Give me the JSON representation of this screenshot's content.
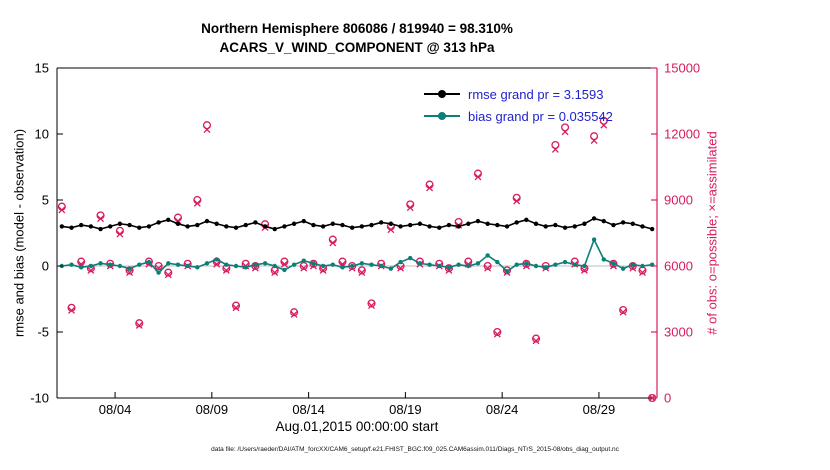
{
  "title": {
    "line1": "Northern Hemisphere 806086 / 819940 = 98.310%",
    "line2": "ACARS_V_WIND_COMPONENT @ 313 hPa"
  },
  "axes": {
    "left_label": "rmse and bias (model - observation)",
    "right_label": "# of obs: o=possible; ×=assimilated",
    "x_label": "Aug.01,2015 00:00:00 start",
    "left_ticks": [
      15,
      10,
      5,
      0,
      -5,
      -10
    ],
    "left_range": [
      -10,
      15
    ],
    "right_ticks": [
      0,
      3000,
      6000,
      9000,
      12000,
      15000
    ],
    "right_range": [
      0,
      15000
    ],
    "x_ticks": [
      {
        "day": 3,
        "label": "08/04"
      },
      {
        "day": 8,
        "label": "08/09"
      },
      {
        "day": 13,
        "label": "08/14"
      },
      {
        "day": 18,
        "label": "08/19"
      },
      {
        "day": 23,
        "label": "08/24"
      },
      {
        "day": 28,
        "label": "08/29"
      }
    ]
  },
  "legend": [
    {
      "label": "rmse grand pr = 3.1593",
      "color": "#000000"
    },
    {
      "label": "bias grand pr = 0.035542",
      "color": "#0e7f78"
    }
  ],
  "colors": {
    "rmse": "#000000",
    "bias": "#0e7f78",
    "obs": "#d81b60",
    "legend_text": "#2222cc",
    "grid": "#bdbdbd",
    "axis": "#000000"
  },
  "caption": "data file: /Users/raeder/DAI/ATM_forcXX/CAM6_setup/f.e21.FHIST_BGC.f09_025.CAM6assim.011/Diags_NTrS_2015-08/obs_diag_output.nc",
  "chart_data": {
    "type": "line",
    "title": "Northern Hemisphere 806086 / 819940 = 98.310%",
    "subtitle": "ACARS_V_WIND_COMPONENT @ 313 hPa",
    "xlabel": "Aug.01,2015 00:00:00 start",
    "ylabel_left": "rmse and bias (model - observation)",
    "ylabel_right": "# of obs: o=possible; ×=assimilated",
    "x_range_days": [
      0,
      31
    ],
    "ylim_left": [
      -10,
      15
    ],
    "ylim_right": [
      0,
      15000
    ],
    "grid": "y-zero-line-only",
    "legend_position": "upper-right-inside",
    "x_days": [
      0.25,
      0.75,
      1.25,
      1.75,
      2.25,
      2.75,
      3.25,
      3.75,
      4.25,
      4.75,
      5.25,
      5.75,
      6.25,
      6.75,
      7.25,
      7.75,
      8.25,
      8.75,
      9.25,
      9.75,
      10.25,
      10.75,
      11.25,
      11.75,
      12.25,
      12.75,
      13.25,
      13.75,
      14.25,
      14.75,
      15.25,
      15.75,
      16.25,
      16.75,
      17.25,
      17.75,
      18.25,
      18.75,
      19.25,
      19.75,
      20.25,
      20.75,
      21.25,
      21.75,
      22.25,
      22.75,
      23.25,
      23.75,
      24.25,
      24.75,
      25.25,
      25.75,
      26.25,
      26.75,
      27.25,
      27.75,
      28.25,
      28.75,
      29.25,
      29.75,
      30.25,
      30.75
    ],
    "series": [
      {
        "name": "rmse",
        "axis": "left",
        "marker": "dot",
        "grand_mean": 3.1593,
        "values": [
          3.0,
          2.9,
          3.1,
          3.0,
          2.8,
          3.0,
          3.2,
          3.1,
          2.9,
          3.0,
          3.3,
          3.5,
          3.2,
          3.0,
          3.1,
          3.4,
          3.2,
          3.0,
          2.9,
          3.1,
          3.3,
          3.0,
          2.8,
          3.0,
          3.2,
          3.4,
          3.1,
          3.0,
          3.2,
          3.1,
          2.9,
          3.0,
          3.1,
          3.3,
          3.2,
          3.0,
          3.1,
          3.2,
          3.0,
          2.9,
          3.1,
          3.0,
          3.2,
          3.4,
          3.2,
          3.1,
          3.0,
          3.3,
          3.5,
          3.2,
          3.0,
          3.1,
          2.9,
          3.0,
          3.2,
          3.6,
          3.4,
          3.1,
          3.3,
          3.2,
          3.0,
          2.8
        ]
      },
      {
        "name": "bias",
        "axis": "left",
        "marker": "dot",
        "grand_mean": 0.035542,
        "values": [
          0.0,
          0.1,
          -0.1,
          0.0,
          0.2,
          0.1,
          0.0,
          -0.2,
          0.1,
          0.3,
          -0.5,
          0.2,
          0.1,
          0.0,
          -0.1,
          0.2,
          0.5,
          0.1,
          0.0,
          -0.1,
          0.1,
          0.2,
          0.0,
          -0.3,
          0.1,
          0.4,
          0.2,
          0.0,
          0.1,
          -0.1,
          0.0,
          0.2,
          0.1,
          0.0,
          -0.2,
          0.3,
          0.6,
          0.2,
          0.1,
          0.0,
          -0.1,
          0.1,
          0.0,
          0.2,
          0.8,
          0.3,
          -0.4,
          0.1,
          0.2,
          0.0,
          -0.1,
          0.1,
          0.3,
          0.1,
          0.0,
          2.0,
          0.5,
          0.2,
          -0.2,
          0.1,
          0.0,
          0.1
        ]
      },
      {
        "name": "possible_obs",
        "axis": "right",
        "marker": "circle",
        "values": [
          8700,
          4100,
          6200,
          5900,
          8300,
          6100,
          7600,
          5800,
          3400,
          6200,
          6000,
          5700,
          8200,
          6100,
          9000,
          12400,
          6200,
          5900,
          4200,
          6100,
          6000,
          7900,
          5800,
          6200,
          3900,
          6000,
          6100,
          5900,
          7200,
          6200,
          6000,
          5800,
          4300,
          6100,
          7800,
          6000,
          8800,
          6200,
          9700,
          6100,
          5900,
          8000,
          6200,
          10200,
          6000,
          3000,
          5800,
          9100,
          6100,
          2700,
          6000,
          11500,
          12300,
          6200,
          5900,
          11900,
          12600,
          6100,
          4000,
          6000,
          5800,
          0
        ]
      },
      {
        "name": "assimilated_obs",
        "axis": "right",
        "marker": "x",
        "values": [
          8550,
          3980,
          6080,
          5800,
          8150,
          6000,
          7450,
          5700,
          3300,
          6080,
          5900,
          5600,
          8050,
          6000,
          8850,
          12200,
          6080,
          5800,
          4100,
          6000,
          5900,
          7750,
          5700,
          6080,
          3800,
          5900,
          6000,
          5800,
          7050,
          6080,
          5900,
          5700,
          4200,
          6000,
          7650,
          5900,
          8650,
          6080,
          9550,
          6000,
          5800,
          7850,
          6080,
          10050,
          5900,
          2900,
          5700,
          8950,
          6000,
          2600,
          5900,
          11300,
          12100,
          6080,
          5800,
          11700,
          12400,
          6000,
          3900,
          5900,
          5700,
          0
        ]
      }
    ]
  }
}
